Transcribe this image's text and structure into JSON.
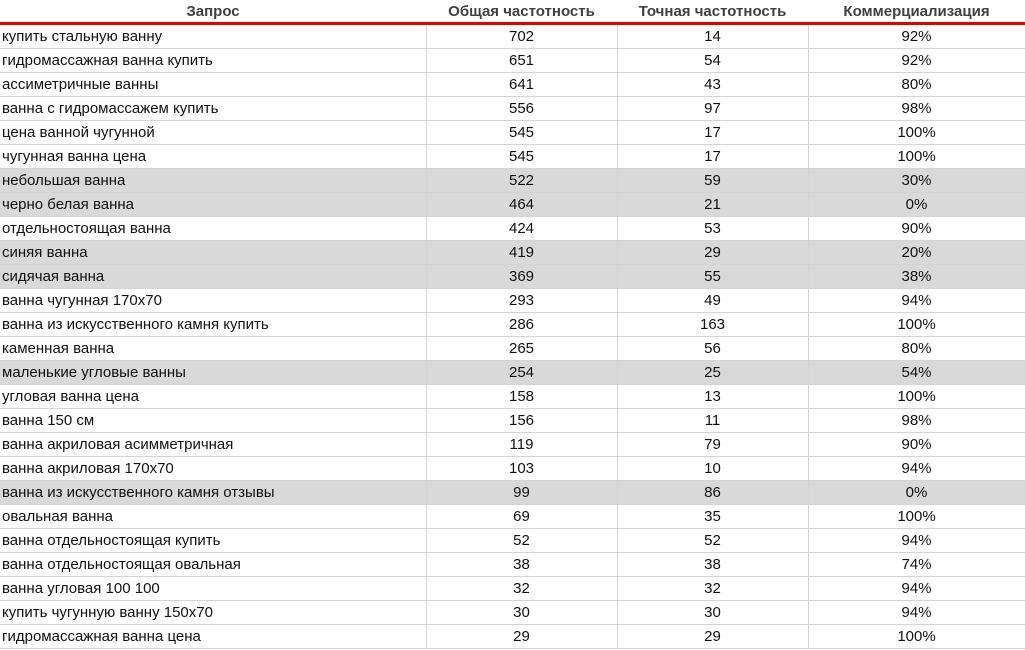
{
  "colors": {
    "header_line": "#e00000",
    "highlight": "#d9d9d9"
  },
  "columns": [
    "Запрос",
    "Общая частотность",
    "Точная частотность",
    "Коммерциализация"
  ],
  "rows": [
    {
      "q": "купить стальную ванну",
      "total": "702",
      "exact": "14",
      "comm": "92%",
      "hl": false
    },
    {
      "q": "гидромассажная ванна купить",
      "total": "651",
      "exact": "54",
      "comm": "92%",
      "hl": false
    },
    {
      "q": "ассиметричные ванны",
      "total": "641",
      "exact": "43",
      "comm": "80%",
      "hl": false
    },
    {
      "q": "ванна с гидромассажем купить",
      "total": "556",
      "exact": "97",
      "comm": "98%",
      "hl": false
    },
    {
      "q": "цена ванной чугунной",
      "total": "545",
      "exact": "17",
      "comm": "100%",
      "hl": false
    },
    {
      "q": "чугунная ванна цена",
      "total": "545",
      "exact": "17",
      "comm": "100%",
      "hl": false
    },
    {
      "q": "небольшая ванна",
      "total": "522",
      "exact": "59",
      "comm": "30%",
      "hl": true
    },
    {
      "q": "черно белая ванна",
      "total": "464",
      "exact": "21",
      "comm": "0%",
      "hl": true
    },
    {
      "q": "отдельностоящая ванна",
      "total": "424",
      "exact": "53",
      "comm": "90%",
      "hl": false
    },
    {
      "q": "синяя ванна",
      "total": "419",
      "exact": "29",
      "comm": "20%",
      "hl": true
    },
    {
      "q": "сидячая ванна",
      "total": "369",
      "exact": "55",
      "comm": "38%",
      "hl": true
    },
    {
      "q": "ванна чугунная 170х70",
      "total": "293",
      "exact": "49",
      "comm": "94%",
      "hl": false
    },
    {
      "q": "ванна из искусственного камня купить",
      "total": "286",
      "exact": "163",
      "comm": "100%",
      "hl": false
    },
    {
      "q": "каменная ванна",
      "total": "265",
      "exact": "56",
      "comm": "80%",
      "hl": false
    },
    {
      "q": "маленькие угловые ванны",
      "total": "254",
      "exact": "25",
      "comm": "54%",
      "hl": true
    },
    {
      "q": "угловая ванна цена",
      "total": "158",
      "exact": "13",
      "comm": "100%",
      "hl": false
    },
    {
      "q": "ванна 150 см",
      "total": "156",
      "exact": "11",
      "comm": "98%",
      "hl": false
    },
    {
      "q": "ванна акриловая асимметричная",
      "total": "119",
      "exact": "79",
      "comm": "90%",
      "hl": false
    },
    {
      "q": "ванна акриловая 170х70",
      "total": "103",
      "exact": "10",
      "comm": "94%",
      "hl": false
    },
    {
      "q": "ванна из искусственного камня отзывы",
      "total": "99",
      "exact": "86",
      "comm": "0%",
      "hl": true
    },
    {
      "q": "овальная ванна",
      "total": "69",
      "exact": "35",
      "comm": "100%",
      "hl": false
    },
    {
      "q": "ванна отдельностоящая купить",
      "total": "52",
      "exact": "52",
      "comm": "94%",
      "hl": false
    },
    {
      "q": "ванна отдельностоящая овальная",
      "total": "38",
      "exact": "38",
      "comm": "74%",
      "hl": false
    },
    {
      "q": "ванна угловая 100 100",
      "total": "32",
      "exact": "32",
      "comm": "94%",
      "hl": false
    },
    {
      "q": "купить чугунную ванну 150х70",
      "total": "30",
      "exact": "30",
      "comm": "94%",
      "hl": false
    },
    {
      "q": "гидромассажная ванна цена",
      "total": "29",
      "exact": "29",
      "comm": "100%",
      "hl": false
    }
  ]
}
